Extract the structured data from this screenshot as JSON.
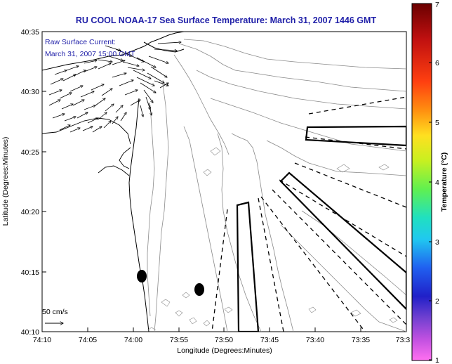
{
  "title": "RU COOL  NOAA-17  Sea Surface Temperature:  March 31, 2007 1446 GMT",
  "current_label_1": "Raw Surface Current:",
  "current_label_2": "March 31, 2007 15:00 GMT",
  "scale_label": "50 cm/s",
  "xlabel": "Longitude (Degrees:Minutes)",
  "ylabel": "Latitude (Degrees:Minutes)",
  "colorbar_label": "Temperature (°C)",
  "x_ticks": [
    "74:10",
    "74:05",
    "74:00",
    "73:55",
    "73:50",
    "73:45",
    "73:40",
    "73:35",
    "73:3"
  ],
  "y_ticks": [
    "40:35",
    "40:30",
    "40:25",
    "40:20",
    "40:15",
    "40:10"
  ],
  "colorbar_ticks": [
    "7",
    "6",
    "5",
    "4",
    "3",
    "2",
    "1"
  ],
  "colors": {
    "title": "#1f1fa8",
    "contour": "#8a8a8a",
    "colorbar": [
      "#7a0000",
      "#c81010",
      "#ff4010",
      "#ff9a10",
      "#ffe020",
      "#d8f020",
      "#80f040",
      "#30e080",
      "#20e0e0",
      "#20a0f0",
      "#2050f0",
      "#2020d0",
      "#7040d0",
      "#d050e0",
      "#ff70f0"
    ]
  }
}
